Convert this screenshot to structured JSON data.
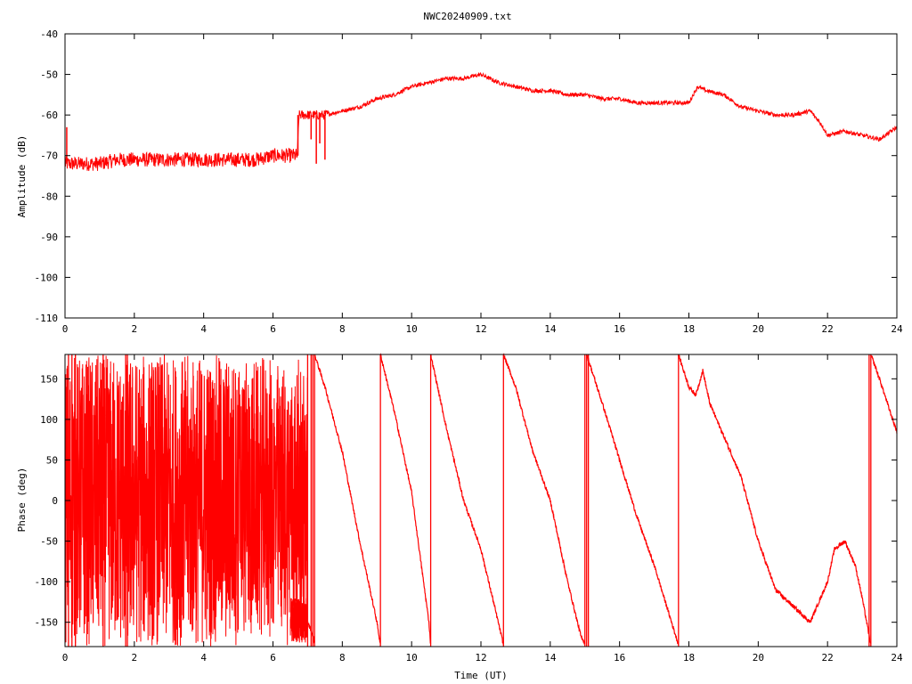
{
  "title": "NWC20240909.txt",
  "colors": {
    "trace": "#ff0000",
    "axis": "#000000",
    "background": "#ffffff"
  },
  "chart_data": [
    {
      "type": "line",
      "title": "NWC20240909.txt",
      "xlabel": "",
      "ylabel": "Amplitude (dB)",
      "xlim": [
        0,
        24
      ],
      "ylim": [
        -110,
        -40
      ],
      "x_ticks": [
        0,
        2,
        4,
        6,
        8,
        10,
        12,
        14,
        16,
        18,
        20,
        22,
        24
      ],
      "y_ticks": [
        -110,
        -100,
        -90,
        -80,
        -70,
        -60,
        -50,
        -40
      ],
      "grid": false,
      "series": [
        {
          "x": [
            0,
            0.5,
            1,
            1.5,
            2,
            2.5,
            3,
            3.5,
            4,
            4.5,
            5,
            5.5,
            6,
            6.5,
            6.7,
            6.75,
            7,
            7.5,
            8,
            8.5,
            9,
            9.5,
            10,
            10.5,
            11,
            11.5,
            12,
            12.5,
            13,
            13.5,
            14,
            14.5,
            15,
            15.5,
            16,
            16.5,
            17,
            17.5,
            18,
            18.25,
            18.5,
            19,
            19.5,
            20,
            20.5,
            21,
            21.5,
            21.8,
            22,
            22.5,
            23,
            23.5,
            24
          ],
          "y": [
            -72,
            -72,
            -72,
            -71,
            -71,
            -71,
            -71,
            -71,
            -71,
            -71,
            -71,
            -71,
            -70,
            -70,
            -70,
            -60,
            -60,
            -60,
            -59,
            -58,
            -56,
            -55,
            -53,
            -52,
            -51,
            -51,
            -50,
            -52,
            -53,
            -54,
            -54,
            -55,
            -55,
            -56,
            -56,
            -57,
            -57,
            -57,
            -57,
            -53,
            -54,
            -55,
            -58,
            -59,
            -60,
            -60,
            -59,
            -62,
            -65,
            -64,
            -65,
            -66,
            -63
          ],
          "noise": [
            {
              "from": 0,
              "to": 6.7,
              "amp": 1.8
            },
            {
              "from": 6.75,
              "to": 7.6,
              "amp": 1.2
            },
            {
              "from": 7.6,
              "to": 24,
              "amp": 0.5
            }
          ],
          "dips": [
            {
              "x": 0.05,
              "y": -63
            },
            {
              "x": 7.1,
              "y": -66
            },
            {
              "x": 7.25,
              "y": -72
            },
            {
              "x": 7.35,
              "y": -67
            },
            {
              "x": 7.5,
              "y": -71
            }
          ]
        }
      ]
    },
    {
      "type": "line",
      "title": "",
      "xlabel": "Time (UT)",
      "ylabel": "Phase (deg)",
      "xlim": [
        0,
        24
      ],
      "ylim": [
        -180,
        180
      ],
      "x_ticks": [
        0,
        2,
        4,
        6,
        8,
        10,
        12,
        14,
        16,
        18,
        20,
        22,
        24
      ],
      "y_ticks": [
        -150,
        -100,
        -50,
        0,
        50,
        100,
        150
      ],
      "grid": false,
      "noisy_region": {
        "from": 0,
        "to": 7.0
      },
      "noisy_dense_end": 5.0,
      "noisy_fill_start": 6.5,
      "segments": [
        {
          "x": [
            7.0,
            7.1,
            7.2
          ],
          "y": [
            -150,
            -160,
            -175
          ]
        },
        {
          "x": [
            7.2,
            7.5,
            8.0,
            8.5,
            9.0,
            9.1
          ],
          "y": [
            180,
            140,
            60,
            -50,
            -150,
            -178
          ]
        },
        {
          "x": [
            9.1,
            9.5,
            10.0,
            10.5,
            10.55
          ],
          "y": [
            180,
            110,
            10,
            -150,
            -178
          ]
        },
        {
          "x": [
            10.55,
            11.0,
            11.5,
            12.0,
            12.5,
            12.65
          ],
          "y": [
            180,
            90,
            0,
            -60,
            -150,
            -178
          ]
        },
        {
          "x": [
            12.65,
            13.0,
            13.5,
            14.0,
            14.5,
            14.9,
            15.0
          ],
          "y": [
            180,
            140,
            60,
            0,
            -100,
            -170,
            -175
          ]
        },
        {
          "x": [
            15.05,
            15.5,
            16.0,
            16.5,
            17.0,
            17.5,
            17.7
          ],
          "y": [
            180,
            120,
            50,
            -20,
            -80,
            -150,
            -178
          ]
        },
        {
          "x": [
            17.7,
            18.0,
            18.2,
            18.4,
            18.6,
            19.0,
            19.5,
            20.0,
            20.5,
            21.0,
            21.5,
            21.8,
            22.0,
            22.2,
            22.5,
            22.8,
            23.0,
            23.25
          ],
          "y": [
            180,
            140,
            130,
            160,
            120,
            80,
            30,
            -50,
            -110,
            -130,
            -150,
            -120,
            -100,
            -60,
            -50,
            -80,
            -120,
            -178
          ]
        },
        {
          "x": [
            23.25,
            23.5,
            23.8,
            24.0
          ],
          "y": [
            180,
            150,
            110,
            85
          ]
        }
      ],
      "vertical_spikes": [
        0.1,
        0.2,
        0.3,
        1.1,
        1.75,
        1.8,
        7.0,
        7.1,
        7.15,
        7.2,
        9.1,
        10.55,
        12.65,
        15.0,
        15.05,
        15.1,
        17.7,
        23.2,
        23.25
      ]
    }
  ]
}
